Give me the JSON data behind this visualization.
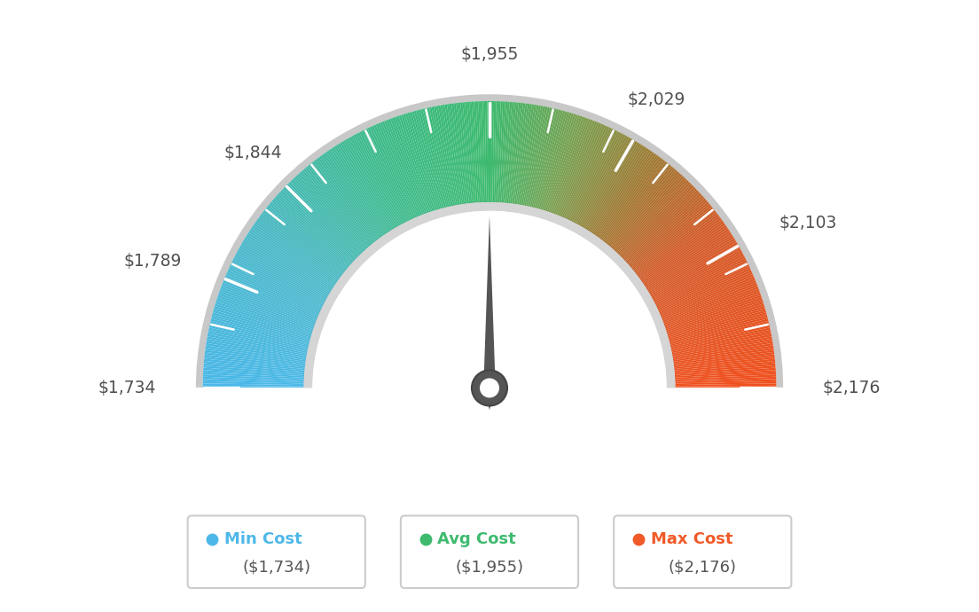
{
  "min_val": 1734,
  "max_val": 2176,
  "avg_val": 1955,
  "needle_value": 1955,
  "tick_labels": [
    "$1,734",
    "$1,789",
    "$1,844",
    "$1,955",
    "$2,029",
    "$2,103",
    "$2,176"
  ],
  "tick_values": [
    1734,
    1789,
    1844,
    1955,
    2029,
    2103,
    2176
  ],
  "legend_items": [
    {
      "label": "Min Cost",
      "value": "($1,734)",
      "color": "#4db8e8"
    },
    {
      "label": "Avg Cost",
      "value": "($1,955)",
      "color": "#3dba6e"
    },
    {
      "label": "Max Cost",
      "value": "($2,176)",
      "color": "#f05a28"
    }
  ],
  "background_color": "#ffffff",
  "color_stops": [
    [
      0.0,
      [
        74,
        184,
        232
      ]
    ],
    [
      0.18,
      [
        74,
        184,
        200
      ]
    ],
    [
      0.35,
      [
        61,
        186,
        140
      ]
    ],
    [
      0.5,
      [
        61,
        186,
        110
      ]
    ],
    [
      0.6,
      [
        120,
        160,
        80
      ]
    ],
    [
      0.7,
      [
        160,
        120,
        50
      ]
    ],
    [
      0.8,
      [
        210,
        90,
        40
      ]
    ],
    [
      1.0,
      [
        240,
        80,
        30
      ]
    ]
  ]
}
